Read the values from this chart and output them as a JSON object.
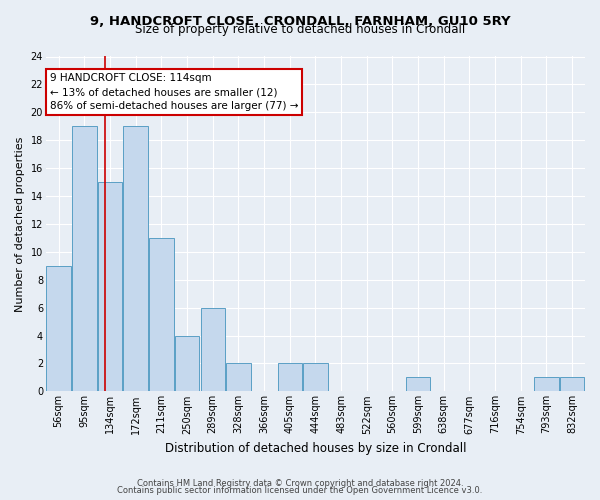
{
  "title1": "9, HANDCROFT CLOSE, CRONDALL, FARNHAM, GU10 5RY",
  "title2": "Size of property relative to detached houses in Crondall",
  "xlabel": "Distribution of detached houses by size in Crondall",
  "ylabel": "Number of detached properties",
  "categories": [
    "56sqm",
    "95sqm",
    "134sqm",
    "172sqm",
    "211sqm",
    "250sqm",
    "289sqm",
    "328sqm",
    "366sqm",
    "405sqm",
    "444sqm",
    "483sqm",
    "522sqm",
    "560sqm",
    "599sqm",
    "638sqm",
    "677sqm",
    "716sqm",
    "754sqm",
    "793sqm",
    "832sqm"
  ],
  "values": [
    9,
    19,
    15,
    19,
    11,
    4,
    6,
    2,
    0,
    2,
    2,
    0,
    0,
    0,
    1,
    0,
    0,
    0,
    0,
    1,
    1
  ],
  "bar_color": "#c5d8ed",
  "bar_edge_color": "#5a9fc5",
  "vline_x": 1.82,
  "vline_color": "#cc0000",
  "annotation_line1": "9 HANDCROFT CLOSE: 114sqm",
  "annotation_line2": "← 13% of detached houses are smaller (12)",
  "annotation_line3": "86% of semi-detached houses are larger (77) →",
  "annotation_box_color": "#ffffff",
  "annotation_box_edge": "#cc0000",
  "ylim": [
    0,
    24
  ],
  "yticks": [
    0,
    2,
    4,
    6,
    8,
    10,
    12,
    14,
    16,
    18,
    20,
    22,
    24
  ],
  "footer1": "Contains HM Land Registry data © Crown copyright and database right 2024.",
  "footer2": "Contains public sector information licensed under the Open Government Licence v3.0.",
  "background_color": "#e8eef5",
  "plot_bg_color": "#e8eef5",
  "grid_color": "#ffffff",
  "title1_fontsize": 9.5,
  "title2_fontsize": 8.5,
  "ylabel_fontsize": 8,
  "xlabel_fontsize": 8.5,
  "tick_fontsize": 7,
  "annotation_fontsize": 7.5,
  "footer_fontsize": 6
}
